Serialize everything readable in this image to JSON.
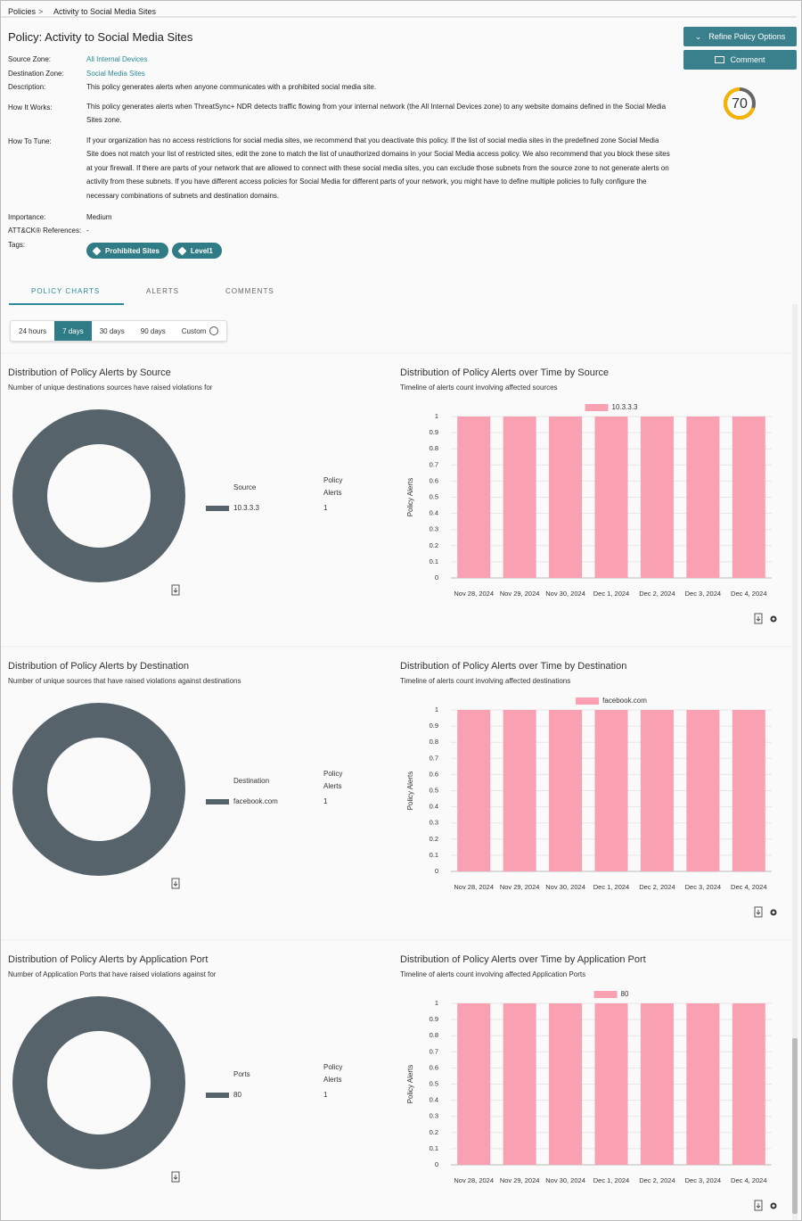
{
  "breadcrumb": [
    "Policies",
    "Activity to Social Media Sites"
  ],
  "title": "Policy: Activity to Social Media Sites",
  "buttons": [
    "Refine Policy Options",
    "Comment"
  ],
  "score": 70,
  "details": {
    "source_zone": {
      "label": "Source Zone:",
      "value": "All Internal Devices"
    },
    "destination_zone": {
      "label": "Destination Zone:",
      "value": "Social Media Sites"
    },
    "description": {
      "label": "Description:",
      "value": "This policy generates alerts when anyone communicates with a prohibited social media site."
    },
    "how_it_works": {
      "label": "How It Works:",
      "value": "This policy generates alerts when ThreatSync+ NDR detects traffic flowing from your internal network (the All Internal Devices zone) to any website domains defined in the Social Media Sites zone."
    },
    "how_to_tune": {
      "label": "How To Tune:",
      "value": "If your organization has no access restrictions for social media sites, we recommend that you deactivate this policy. If the list of social media sites in the predefined zone Social Media Site does not match your list of restricted sites, edit the zone to match the list of unauthorized domains in your Social Media access policy. We also recommend that you block these sites at your firewall. If there are parts of your network that are allowed to connect with these social media sites, you can exclude those subnets from the source zone to not generate alerts on activity from these subnets. If you have different access policies for Social Media for different parts of your network, you might have to define multiple policies to fully configure the necessary combinations of subnets and destination domains."
    },
    "importance": {
      "label": "Importance:",
      "value": "Medium"
    },
    "attck": {
      "label": "ATT&CK® References:",
      "value": "-"
    },
    "tags": {
      "label": "Tags:",
      "values": [
        "Prohibited Sites",
        "Level1"
      ]
    }
  },
  "tabs": [
    "POLICY CHARTS",
    "ALERTS",
    "COMMENTS"
  ],
  "selected_tab": 0,
  "ranges": [
    "24 hours",
    "7 days",
    "30 days",
    "90 days",
    "Custom"
  ],
  "selected_range": 1,
  "sections": [
    {
      "donut": {
        "type": "donut",
        "title": "Distribution of Policy Alerts by Source",
        "subtitle": "Number of unique destinations sources have raised violations for",
        "legend_title": "Source",
        "value_title": "Policy Alerts",
        "categories": [
          "10.3.3.3"
        ],
        "values": [
          1
        ],
        "color": "#56636b"
      },
      "timeline": {
        "type": "bar",
        "title": "Distribution of Policy Alerts over Time by Source",
        "subtitle": "Timeline of alerts count involving affected sources",
        "y_label": "Policy Alerts",
        "categories": [
          "Nov 28, 2024",
          "Nov 29, 2024",
          "Nov 30, 2024",
          "Dec 1, 2024",
          "Dec 2, 2024",
          "Dec 3, 2024",
          "Dec 4, 2024"
        ],
        "series": [
          {
            "name": "10.3.3.3",
            "color": "#f9a0b3",
            "values": [
              1,
              1,
              1,
              1,
              1,
              1,
              1
            ]
          }
        ],
        "ylim": [
          0,
          1
        ],
        "yticks": [
          0,
          0.1,
          0.2,
          0.3,
          0.4,
          0.5,
          0.6,
          0.7,
          0.8,
          0.9,
          1
        ],
        "grid": true
      }
    },
    {
      "donut": {
        "type": "donut",
        "title": "Distribution of Policy Alerts by Destination",
        "subtitle": "Number of unique sources that have raised violations against destinations",
        "legend_title": "Destination",
        "value_title": "Policy Alerts",
        "categories": [
          "facebook.com"
        ],
        "values": [
          1
        ],
        "color": "#56636b"
      },
      "timeline": {
        "type": "bar",
        "title": "Distribution of Policy Alerts over Time by Destination",
        "subtitle": "Timeline of alerts count involving affected destinations",
        "y_label": "Policy Alerts",
        "categories": [
          "Nov 28, 2024",
          "Nov 29, 2024",
          "Nov 30, 2024",
          "Dec 1, 2024",
          "Dec 2, 2024",
          "Dec 3, 2024",
          "Dec 4, 2024"
        ],
        "series": [
          {
            "name": "facebook.com",
            "color": "#f9a0b3",
            "values": [
              1,
              1,
              1,
              1,
              1,
              1,
              1
            ]
          }
        ],
        "ylim": [
          0,
          1
        ],
        "yticks": [
          0,
          0.1,
          0.2,
          0.3,
          0.4,
          0.5,
          0.6,
          0.7,
          0.8,
          0.9,
          1
        ],
        "grid": true
      }
    },
    {
      "donut": {
        "type": "donut",
        "title": "Distribution of Policy Alerts by Application Port",
        "subtitle": "Number of Application Ports that have raised violations against for",
        "legend_title": "Ports",
        "value_title": "Policy Alerts",
        "categories": [
          "80"
        ],
        "values": [
          1
        ],
        "color": "#56636b"
      },
      "timeline": {
        "type": "bar",
        "title": "Distribution of Policy Alerts over Time by Application Port",
        "subtitle": "Timeline of alerts count involving affected Application Ports",
        "y_label": "Policy Alerts",
        "categories": [
          "Nov 28, 2024",
          "Nov 29, 2024",
          "Nov 30, 2024",
          "Dec 1, 2024",
          "Dec 2, 2024",
          "Dec 3, 2024",
          "Dec 4, 2024"
        ],
        "series": [
          {
            "name": "80",
            "color": "#f9a0b3",
            "values": [
              1,
              1,
              1,
              1,
              1,
              1,
              1
            ]
          }
        ],
        "ylim": [
          0,
          1
        ],
        "yticks": [
          0,
          0.1,
          0.2,
          0.3,
          0.4,
          0.5,
          0.6,
          0.7,
          0.8,
          0.9,
          1
        ],
        "grid": true
      }
    }
  ]
}
